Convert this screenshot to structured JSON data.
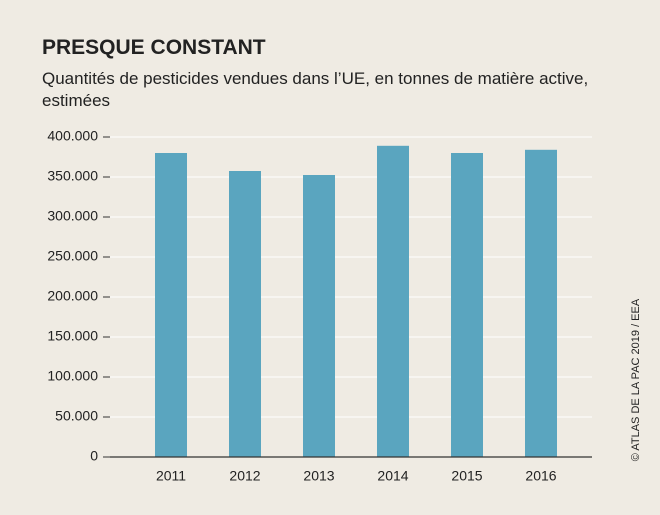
{
  "chart_data": {
    "type": "bar",
    "title": "PRESQUE CONSTANT",
    "subtitle": "Quantités de pesticides vendues dans l’UE, en tonnes de matière active, estimées",
    "source": "© ATLAS DE LA PAC 2019 / EEA",
    "categories": [
      "2011",
      "2012",
      "2013",
      "2014",
      "2015",
      "2016"
    ],
    "values": [
      380000,
      357500,
      352500,
      389000,
      380000,
      384000
    ],
    "color": "#5aa5bf",
    "ylim": [
      0,
      400000
    ],
    "yticks": [
      0,
      {
        "value": 50000,
        "label": "50.000"
      },
      {
        "value": 100000,
        "label": "100.000"
      },
      {
        "value": 150000,
        "label": "150.000"
      },
      {
        "value": 200000,
        "label": "200.000"
      },
      {
        "value": 250000,
        "label": "250.000"
      },
      {
        "value": 300000,
        "label": "300.000"
      },
      {
        "value": 350000,
        "label": "350.000"
      },
      {
        "value": 400000,
        "label": "400.000"
      }
    ],
    "grid": true
  }
}
